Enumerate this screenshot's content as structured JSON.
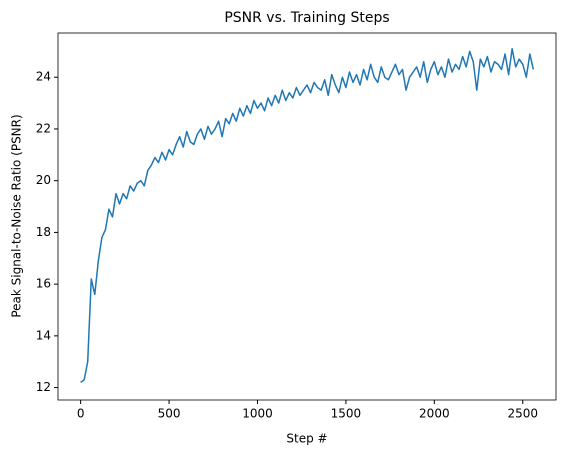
{
  "chart_data": {
    "type": "line",
    "title": "PSNR vs. Training Steps",
    "x_label": "Step #",
    "y_label": "Peak Signal-to-Noise Ratio (PSNR)",
    "x": [
      0,
      20,
      40,
      60,
      80,
      100,
      120,
      140,
      160,
      180,
      200,
      220,
      240,
      260,
      280,
      300,
      320,
      340,
      360,
      380,
      400,
      420,
      440,
      460,
      480,
      500,
      520,
      540,
      560,
      580,
      600,
      620,
      640,
      660,
      680,
      700,
      720,
      740,
      760,
      780,
      800,
      820,
      840,
      860,
      880,
      900,
      920,
      940,
      960,
      980,
      1000,
      1020,
      1040,
      1060,
      1080,
      1100,
      1120,
      1140,
      1160,
      1180,
      1200,
      1220,
      1240,
      1260,
      1280,
      1300,
      1320,
      1340,
      1360,
      1380,
      1400,
      1420,
      1440,
      1460,
      1480,
      1500,
      1520,
      1540,
      1560,
      1580,
      1600,
      1620,
      1640,
      1660,
      1680,
      1700,
      1720,
      1740,
      1760,
      1780,
      1800,
      1820,
      1840,
      1860,
      1880,
      1900,
      1920,
      1940,
      1960,
      1980,
      2000,
      2020,
      2040,
      2060,
      2080,
      2100,
      2120,
      2140,
      2160,
      2180,
      2200,
      2220,
      2240,
      2260,
      2280,
      2300,
      2320,
      2340,
      2360,
      2380,
      2400,
      2420,
      2440,
      2460,
      2480,
      2500,
      2520,
      2540,
      2560
    ],
    "series": [
      {
        "name": "PSNR",
        "color": "#1f77b4",
        "values": [
          12.2,
          12.3,
          13.0,
          16.2,
          15.6,
          16.9,
          17.8,
          18.1,
          18.9,
          18.6,
          19.5,
          19.1,
          19.5,
          19.3,
          19.8,
          19.6,
          19.9,
          20.0,
          19.8,
          20.4,
          20.6,
          20.9,
          20.7,
          21.1,
          20.8,
          21.2,
          21.0,
          21.4,
          21.7,
          21.3,
          21.9,
          21.5,
          21.4,
          21.8,
          22.0,
          21.6,
          22.1,
          21.8,
          22.0,
          22.3,
          21.7,
          22.4,
          22.2,
          22.6,
          22.3,
          22.8,
          22.5,
          22.9,
          22.6,
          23.1,
          22.8,
          23.0,
          22.7,
          23.2,
          22.9,
          23.3,
          23.0,
          23.5,
          23.1,
          23.4,
          23.2,
          23.6,
          23.3,
          23.5,
          23.7,
          23.4,
          23.8,
          23.6,
          23.5,
          23.9,
          23.3,
          24.1,
          23.7,
          23.4,
          24.0,
          23.6,
          24.2,
          23.8,
          24.1,
          23.7,
          24.3,
          23.9,
          24.5,
          24.0,
          23.8,
          24.4,
          24.0,
          23.9,
          24.2,
          24.5,
          24.1,
          24.3,
          23.5,
          24.0,
          24.2,
          24.4,
          24.0,
          24.6,
          23.8,
          24.3,
          24.6,
          24.1,
          24.4,
          24.0,
          24.7,
          24.2,
          24.5,
          24.3,
          24.8,
          24.4,
          25.0,
          24.6,
          23.5,
          24.7,
          24.4,
          24.8,
          24.2,
          24.6,
          24.5,
          24.3,
          24.9,
          24.1,
          25.1,
          24.4,
          24.7,
          24.5,
          24.0,
          24.9,
          24.3
        ]
      }
    ],
    "xlim": [
      -128,
      2688
    ],
    "ylim": [
      11.52,
      25.71
    ],
    "xticks": [
      0,
      500,
      1000,
      1500,
      2000,
      2500
    ],
    "yticks": [
      12,
      14,
      16,
      18,
      20,
      22,
      24
    ]
  }
}
